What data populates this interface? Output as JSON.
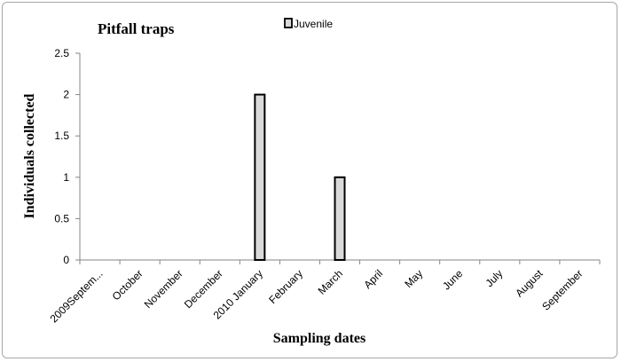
{
  "chart_data": {
    "type": "bar",
    "title": "Pitfall traps",
    "xlabel": "Sampling dates",
    "ylabel": "Individuals collected",
    "categories": [
      "2009Septem...",
      "October",
      "November",
      "December",
      "2010 January",
      "February",
      "March",
      "April",
      "May",
      "June",
      "July",
      "August",
      "September"
    ],
    "series": [
      {
        "name": "Juvenile",
        "values": [
          0,
          0,
          0,
          0,
          2,
          0,
          1,
          0,
          0,
          0,
          0,
          0,
          0
        ]
      }
    ],
    "ylim": [
      0,
      2.5
    ],
    "yticks": [
      "0",
      "0.5",
      "1",
      "1.5",
      "2",
      "2.5"
    ],
    "grid": false,
    "legend_position": "top-center",
    "colors": {
      "bar_fill": "#d9d9d9",
      "bar_stroke": "#000000",
      "axis": "#868686"
    }
  }
}
